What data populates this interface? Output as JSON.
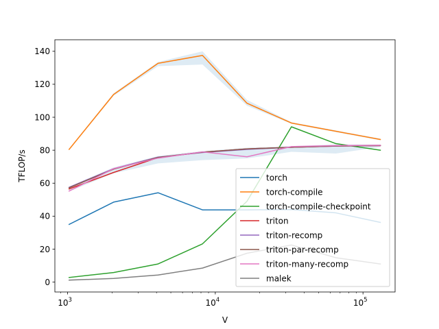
{
  "chart_data": {
    "type": "line",
    "title": "",
    "xlabel": "V",
    "ylabel": "TFLOP/s",
    "xscale": "log",
    "xlim": [
      820,
      165000
    ],
    "ylim": [
      -6,
      147
    ],
    "x_ticks": [
      {
        "value": 1000,
        "base": "10",
        "exp": "3"
      },
      {
        "value": 10000,
        "base": "10",
        "exp": "4"
      },
      {
        "value": 100000,
        "base": "10",
        "exp": "5"
      }
    ],
    "y_ticks": [
      0,
      20,
      40,
      60,
      80,
      100,
      120,
      140
    ],
    "grid": false,
    "legend_position": "lower-right",
    "x": [
      1024,
      2048,
      4096,
      8192,
      16384,
      32768,
      65536,
      131072
    ],
    "series": [
      {
        "name": "torch",
        "color": "#1f77b4",
        "values": [
          35,
          48.5,
          54.2,
          43.8,
          43.8,
          44,
          42,
          36.2
        ]
      },
      {
        "name": "torch-compile",
        "color": "#ff7f0e",
        "values": [
          80.5,
          113.8,
          132.7,
          137.5,
          108.5,
          96.5,
          91.5,
          86.5
        ],
        "band_low": [
          80,
          113,
          131,
          132,
          107,
          96,
          91,
          86
        ],
        "band_high": [
          81,
          114.5,
          133.5,
          140,
          110.5,
          97,
          92,
          87
        ]
      },
      {
        "name": "torch-compile-checkpoint",
        "color": "#2ca02c",
        "values": [
          2.8,
          5.8,
          11,
          23.2,
          49,
          94.2,
          84,
          80
        ]
      },
      {
        "name": "triton",
        "color": "#d62728",
        "values": [
          56.5,
          66.5,
          75.5,
          78.8,
          80.8,
          81.8,
          82.5,
          82.8
        ]
      },
      {
        "name": "triton-recomp",
        "color": "#9467bd",
        "values": [
          57.5,
          68.8,
          75.8,
          78.6,
          80.5,
          81.8,
          82.5,
          82.8
        ]
      },
      {
        "name": "triton-par-recomp",
        "color": "#8c564b",
        "values": [
          57.2,
          68.5,
          75.6,
          78.8,
          80.8,
          81.8,
          82.6,
          82.8
        ],
        "band_low": [
          55,
          66,
          72,
          74,
          75,
          79,
          78,
          82
        ],
        "band_high": [
          58,
          69.5,
          76.5,
          79.5,
          81.5,
          82.5,
          83.5,
          83.5
        ]
      },
      {
        "name": "triton-many-recomp",
        "color": "#e377c2",
        "values": [
          55.2,
          68.8,
          75.2,
          79,
          76,
          82.2,
          82.8,
          83
        ]
      },
      {
        "name": "malek",
        "color": "#7f7f7f",
        "values": [
          1.2,
          2.2,
          4.3,
          8.5,
          17.5,
          22.5,
          14.8,
          11
        ]
      }
    ]
  }
}
